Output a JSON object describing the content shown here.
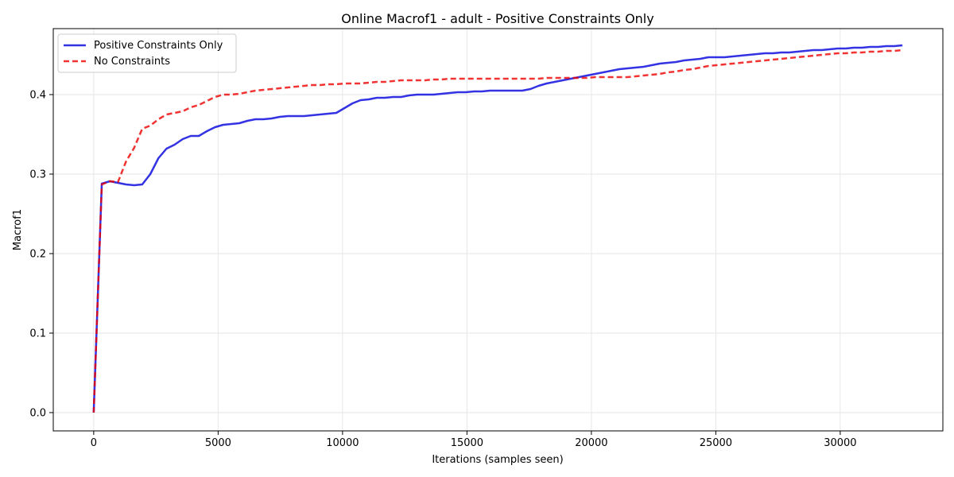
{
  "chart_data": {
    "type": "line",
    "title": "Online Macrof1 - adult - Positive Constraints Only",
    "xlabel": "Iterations (samples seen)",
    "ylabel": "Macrof1",
    "xlim": [
      -1625,
      34125
    ],
    "ylim": [
      -0.023,
      0.483
    ],
    "xticks": [
      0,
      5000,
      10000,
      15000,
      20000,
      25000,
      30000
    ],
    "xtick_labels": [
      "0",
      "5000",
      "10000",
      "15000",
      "20000",
      "25000",
      "30000"
    ],
    "yticks": [
      0.0,
      0.1,
      0.2,
      0.3,
      0.4
    ],
    "ytick_labels": [
      "0.0",
      "0.1",
      "0.2",
      "0.3",
      "0.4"
    ],
    "grid": true,
    "legend_position": "top-left",
    "series": [
      {
        "name": "Positive Constraints Only",
        "color": "#0000dd",
        "style": "solid",
        "points": [
          [
            0,
            0.0
          ],
          [
            325,
            0.288
          ],
          [
            650,
            0.291
          ],
          [
            975,
            0.289
          ],
          [
            1300,
            0.287
          ],
          [
            1625,
            0.286
          ],
          [
            1950,
            0.287
          ],
          [
            2275,
            0.3
          ],
          [
            2600,
            0.32
          ],
          [
            2925,
            0.332
          ],
          [
            3250,
            0.337
          ],
          [
            3575,
            0.344
          ],
          [
            3900,
            0.348
          ],
          [
            4225,
            0.348
          ],
          [
            4550,
            0.354
          ],
          [
            4875,
            0.359
          ],
          [
            5200,
            0.362
          ],
          [
            5525,
            0.363
          ],
          [
            5850,
            0.364
          ],
          [
            6175,
            0.367
          ],
          [
            6500,
            0.369
          ],
          [
            6825,
            0.369
          ],
          [
            7150,
            0.37
          ],
          [
            7475,
            0.372
          ],
          [
            7800,
            0.373
          ],
          [
            8125,
            0.373
          ],
          [
            8450,
            0.373
          ],
          [
            8775,
            0.374
          ],
          [
            9100,
            0.375
          ],
          [
            9425,
            0.376
          ],
          [
            9750,
            0.377
          ],
          [
            10075,
            0.383
          ],
          [
            10400,
            0.389
          ],
          [
            10725,
            0.393
          ],
          [
            11050,
            0.394
          ],
          [
            11375,
            0.396
          ],
          [
            11700,
            0.396
          ],
          [
            12025,
            0.397
          ],
          [
            12350,
            0.397
          ],
          [
            12675,
            0.399
          ],
          [
            13000,
            0.4
          ],
          [
            13325,
            0.4
          ],
          [
            13650,
            0.4
          ],
          [
            13975,
            0.401
          ],
          [
            14300,
            0.402
          ],
          [
            14625,
            0.403
          ],
          [
            14950,
            0.403
          ],
          [
            15275,
            0.404
          ],
          [
            15600,
            0.404
          ],
          [
            15925,
            0.405
          ],
          [
            16250,
            0.405
          ],
          [
            16575,
            0.405
          ],
          [
            16900,
            0.405
          ],
          [
            17225,
            0.405
          ],
          [
            17550,
            0.407
          ],
          [
            17875,
            0.411
          ],
          [
            18200,
            0.414
          ],
          [
            18525,
            0.416
          ],
          [
            18850,
            0.418
          ],
          [
            19175,
            0.42
          ],
          [
            19500,
            0.422
          ],
          [
            19825,
            0.424
          ],
          [
            20150,
            0.426
          ],
          [
            20475,
            0.428
          ],
          [
            20800,
            0.43
          ],
          [
            21125,
            0.432
          ],
          [
            21450,
            0.433
          ],
          [
            21775,
            0.434
          ],
          [
            22100,
            0.435
          ],
          [
            22425,
            0.437
          ],
          [
            22750,
            0.439
          ],
          [
            23075,
            0.44
          ],
          [
            23400,
            0.441
          ],
          [
            23725,
            0.443
          ],
          [
            24050,
            0.444
          ],
          [
            24375,
            0.445
          ],
          [
            24700,
            0.447
          ],
          [
            25025,
            0.447
          ],
          [
            25350,
            0.447
          ],
          [
            25675,
            0.448
          ],
          [
            26000,
            0.449
          ],
          [
            26325,
            0.45
          ],
          [
            26650,
            0.451
          ],
          [
            26975,
            0.452
          ],
          [
            27300,
            0.452
          ],
          [
            27625,
            0.453
          ],
          [
            27950,
            0.453
          ],
          [
            28275,
            0.454
          ],
          [
            28600,
            0.455
          ],
          [
            28925,
            0.456
          ],
          [
            29250,
            0.456
          ],
          [
            29575,
            0.457
          ],
          [
            29900,
            0.458
          ],
          [
            30225,
            0.458
          ],
          [
            30550,
            0.459
          ],
          [
            30875,
            0.459
          ],
          [
            31200,
            0.46
          ],
          [
            31525,
            0.46
          ],
          [
            31850,
            0.461
          ],
          [
            32175,
            0.461
          ],
          [
            32500,
            0.462
          ]
        ]
      },
      {
        "name": "No Constraints",
        "color": "#ee0000",
        "style": "dashed",
        "points": [
          [
            0,
            0.0
          ],
          [
            325,
            0.287
          ],
          [
            650,
            0.291
          ],
          [
            975,
            0.29
          ],
          [
            1300,
            0.316
          ],
          [
            1625,
            0.333
          ],
          [
            1950,
            0.357
          ],
          [
            2275,
            0.361
          ],
          [
            2600,
            0.369
          ],
          [
            2925,
            0.375
          ],
          [
            3250,
            0.377
          ],
          [
            3575,
            0.379
          ],
          [
            3900,
            0.384
          ],
          [
            4225,
            0.387
          ],
          [
            4550,
            0.392
          ],
          [
            4875,
            0.397
          ],
          [
            5200,
            0.4
          ],
          [
            5525,
            0.4
          ],
          [
            5850,
            0.401
          ],
          [
            6175,
            0.403
          ],
          [
            6500,
            0.405
          ],
          [
            6825,
            0.406
          ],
          [
            7150,
            0.407
          ],
          [
            7475,
            0.408
          ],
          [
            7800,
            0.409
          ],
          [
            8125,
            0.41
          ],
          [
            8450,
            0.411
          ],
          [
            8775,
            0.412
          ],
          [
            9100,
            0.412
          ],
          [
            9425,
            0.413
          ],
          [
            9750,
            0.413
          ],
          [
            10075,
            0.414
          ],
          [
            10400,
            0.414
          ],
          [
            10725,
            0.414
          ],
          [
            11050,
            0.415
          ],
          [
            11375,
            0.416
          ],
          [
            11700,
            0.416
          ],
          [
            12025,
            0.417
          ],
          [
            12350,
            0.418
          ],
          [
            12675,
            0.418
          ],
          [
            13000,
            0.418
          ],
          [
            13325,
            0.418
          ],
          [
            13650,
            0.419
          ],
          [
            13975,
            0.419
          ],
          [
            14300,
            0.42
          ],
          [
            14625,
            0.42
          ],
          [
            14950,
            0.42
          ],
          [
            15275,
            0.42
          ],
          [
            15600,
            0.42
          ],
          [
            15925,
            0.42
          ],
          [
            16250,
            0.42
          ],
          [
            16575,
            0.42
          ],
          [
            16900,
            0.42
          ],
          [
            17225,
            0.42
          ],
          [
            17550,
            0.42
          ],
          [
            17875,
            0.42
          ],
          [
            18200,
            0.421
          ],
          [
            18525,
            0.421
          ],
          [
            18850,
            0.421
          ],
          [
            19175,
            0.421
          ],
          [
            19500,
            0.421
          ],
          [
            19825,
            0.421
          ],
          [
            20150,
            0.422
          ],
          [
            20475,
            0.422
          ],
          [
            20800,
            0.422
          ],
          [
            21125,
            0.422
          ],
          [
            21450,
            0.422
          ],
          [
            21775,
            0.423
          ],
          [
            22100,
            0.424
          ],
          [
            22425,
            0.425
          ],
          [
            22750,
            0.426
          ],
          [
            23075,
            0.428
          ],
          [
            23400,
            0.429
          ],
          [
            23725,
            0.431
          ],
          [
            24050,
            0.432
          ],
          [
            24375,
            0.434
          ],
          [
            24700,
            0.436
          ],
          [
            25025,
            0.437
          ],
          [
            25350,
            0.438
          ],
          [
            25675,
            0.439
          ],
          [
            26000,
            0.44
          ],
          [
            26325,
            0.441
          ],
          [
            26650,
            0.442
          ],
          [
            26975,
            0.443
          ],
          [
            27300,
            0.444
          ],
          [
            27625,
            0.445
          ],
          [
            27950,
            0.446
          ],
          [
            28275,
            0.447
          ],
          [
            28600,
            0.448
          ],
          [
            28925,
            0.449
          ],
          [
            29250,
            0.45
          ],
          [
            29575,
            0.451
          ],
          [
            29900,
            0.452
          ],
          [
            30225,
            0.452
          ],
          [
            30550,
            0.453
          ],
          [
            30875,
            0.453
          ],
          [
            31200,
            0.454
          ],
          [
            31525,
            0.454
          ],
          [
            31850,
            0.455
          ],
          [
            32175,
            0.455
          ],
          [
            32500,
            0.456
          ]
        ]
      }
    ]
  }
}
